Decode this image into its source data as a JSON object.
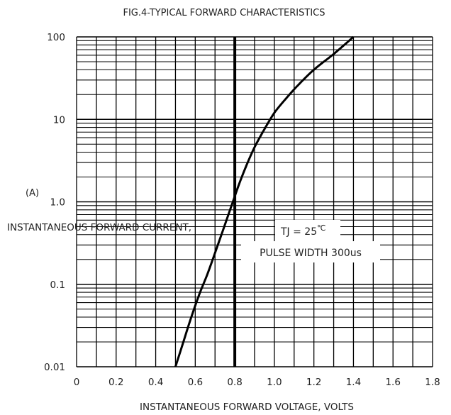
{
  "chart_data": {
    "type": "line",
    "title": "FIG.4-TYPICAL FORWARD CHARACTERISTICS",
    "xlabel": "INSTANTANEOUS FORWARD VOLTAGE, VOLTS",
    "ylabel": "INSTANTANEOUS FORWARD CURRENT,",
    "yunit": "(A)",
    "xscale": "linear",
    "yscale": "log",
    "xlim": [
      0,
      1.8
    ],
    "ylim": [
      0.01,
      100
    ],
    "grid": true,
    "xticks": [
      "0",
      "0.2",
      "0.4",
      "0.6",
      "0.8",
      "1.0",
      "1.2",
      "1.4",
      "1.6",
      "1.8"
    ],
    "yticks": [
      {
        "value": 0.01,
        "label": "0.01"
      },
      {
        "value": 0.1,
        "label": "0.1"
      },
      {
        "value": 1,
        "label": "1.0"
      },
      {
        "value": 10,
        "label": "10"
      },
      {
        "value": 100,
        "label": "100"
      }
    ],
    "annotations": {
      "tj_prefix": "TJ = 25",
      "tj_unit": "℃",
      "pulse": "PULSE WIDTH 300us"
    },
    "highlight_x": 0.8,
    "series": [
      {
        "x": [
          0.5,
          0.54,
          0.58,
          0.62,
          0.66,
          0.7,
          0.74,
          0.78,
          0.82,
          0.86,
          0.9,
          0.95,
          1.0,
          1.06,
          1.12,
          1.2,
          1.3,
          1.4
        ],
        "y": [
          0.01,
          0.02,
          0.04,
          0.075,
          0.13,
          0.24,
          0.45,
          0.85,
          1.6,
          2.8,
          4.6,
          7.6,
          12,
          18,
          26,
          40,
          62,
          100
        ]
      }
    ]
  }
}
